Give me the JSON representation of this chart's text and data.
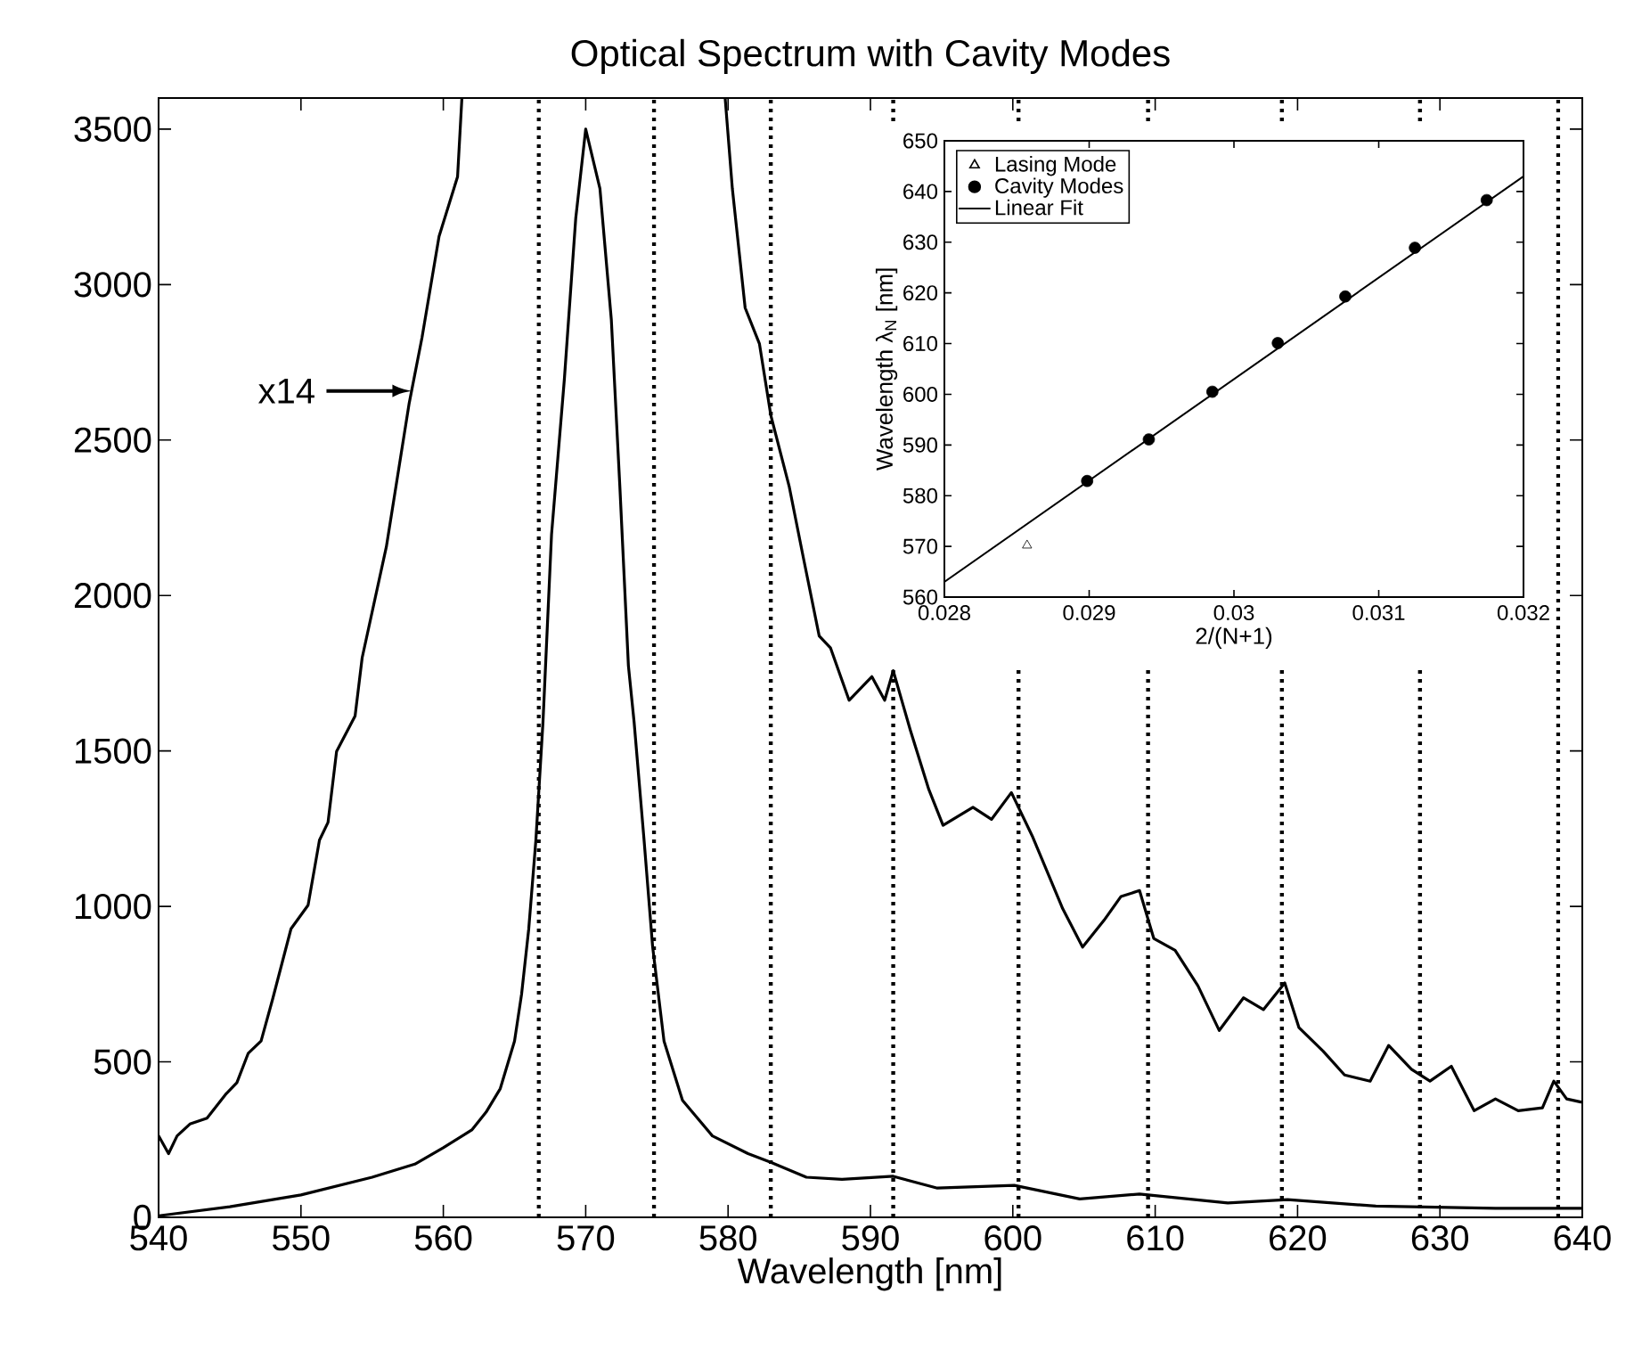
{
  "chart_data": [
    {
      "type": "line",
      "title": "Optical Spectrum with Cavity Modes",
      "xlabel": "Wavelength [nm]",
      "xlim": [
        540,
        640
      ],
      "ylim": [
        0,
        3600
      ],
      "xticks": [
        540,
        550,
        560,
        570,
        580,
        590,
        600,
        610,
        620,
        630,
        640
      ],
      "yticks": [
        0,
        500,
        1000,
        1500,
        2000,
        2500,
        3000,
        3500
      ],
      "series": [
        {
          "color": "#000000",
          "x": [
            540,
            545,
            550,
            555,
            558,
            560,
            562,
            563,
            564,
            565,
            565.5,
            566,
            566.5,
            567,
            567.6,
            568.5,
            569.3,
            570,
            571,
            571.8,
            572.4,
            573,
            573.4,
            574.1,
            574.7,
            575.5,
            576.8,
            578.9,
            581.4,
            583,
            585.5,
            588,
            591.6,
            594.7,
            600.1,
            604.7,
            608.9,
            615.1,
            619.3,
            625.5,
            633.9,
            639.7,
            640
          ],
          "values": [
            5,
            34,
            72,
            129,
            171,
            224,
            281,
            338,
            414,
            567,
            719,
            928,
            1213,
            1593,
            2196,
            2695,
            3213,
            3500,
            3309,
            2887,
            2349,
            1774,
            1593,
            1213,
            871,
            567,
            376,
            262,
            205,
            177,
            129,
            122,
            132,
            94,
            103,
            59,
            75,
            46,
            57,
            36,
            29,
            29,
            29
          ]
        },
        {
          "color": "#000000",
          "x": [
            540,
            540.7,
            541.3,
            542.2,
            543.4,
            544.7,
            545.5,
            546.3,
            547.2,
            548,
            549.3,
            550.5,
            551.3,
            551.9,
            552.5,
            553.8,
            554.3,
            556,
            557.6,
            558.5,
            559.7,
            561,
            561.3,
            570,
            579.8,
            580.3,
            581.2,
            582.2,
            583,
            584.3,
            585.3,
            586.4,
            587.2,
            588.5,
            590.1,
            591,
            591.6,
            592.8,
            594.1,
            595.1,
            597.2,
            598.5,
            599.9,
            601.4,
            603.5,
            604.9,
            606.4,
            607.6,
            608.9,
            609.9,
            611.4,
            613,
            614.5,
            616.2,
            617.6,
            619.1,
            620.1,
            621.8,
            623.3,
            625.1,
            626.4,
            628,
            629.3,
            630.8,
            632.4,
            633.9,
            635.5,
            637.2,
            638,
            638.9,
            639.9
          ],
          "values": [
            262,
            205,
            262,
            300,
            319,
            395,
            433,
            528,
            567,
            700,
            928,
            1004,
            1213,
            1270,
            1498,
            1612,
            1800,
            2157,
            2618,
            2829,
            3155,
            3347,
            3597,
            null,
            3597,
            3309,
            2925,
            2810,
            2580,
            2349,
            2119,
            1870,
            1831,
            1663,
            1739,
            1663,
            1758,
            1567,
            1376,
            1261,
            1319,
            1280,
            1366,
            1223,
            993,
            869,
            955,
            1032,
            1051,
            897,
            859,
            745,
            601,
            706,
            668,
            754,
            610,
            534,
            458,
            438,
            553,
            476,
            438,
            486,
            343,
            381,
            343,
            352,
            438,
            381,
            371
          ]
        }
      ],
      "ref_lines": [
        {
          "axis": "x",
          "value": 566.7,
          "line_style": "dotted",
          "color": "#000000"
        },
        {
          "axis": "x",
          "value": 574.8,
          "line_style": "dotted",
          "color": "#000000"
        },
        {
          "axis": "x",
          "value": 583,
          "line_style": "dotted",
          "color": "#000000"
        },
        {
          "axis": "x",
          "value": 591.6,
          "line_style": "dotted",
          "color": "#000000"
        },
        {
          "axis": "x",
          "value": 600.4,
          "line_style": "dotted",
          "color": "#000000"
        },
        {
          "axis": "x",
          "value": 609.5,
          "line_style": "dotted",
          "color": "#000000"
        },
        {
          "axis": "x",
          "value": 618.9,
          "line_style": "dotted",
          "color": "#000000"
        },
        {
          "axis": "x",
          "value": 628.6,
          "line_style": "dotted",
          "color": "#000000"
        },
        {
          "axis": "x",
          "value": 638.3,
          "line_style": "dotted",
          "color": "#000000"
        }
      ],
      "annotations": [
        {
          "text": "x14",
          "x": 557.8,
          "y": 2658
        }
      ],
      "grid": false,
      "legend": false
    },
    {
      "type": "scatter",
      "xlabel": "2/(N+1)",
      "ylabel": "Wavelength λ$_{N}$ [nm]",
      "xlim": [
        0.028,
        0.032
      ],
      "ylim": [
        560,
        650
      ],
      "xticks": [
        0.028,
        0.029,
        0.03,
        0.031,
        0.032
      ],
      "yticks": [
        560,
        570,
        580,
        590,
        600,
        610,
        620,
        630,
        640,
        650
      ],
      "series": [
        {
          "name": "Lasing Mode",
          "type": "scatter",
          "marker": "triangle",
          "color": "#000000",
          "x": [
            0.028571
          ],
          "values": [
            570.2
          ]
        },
        {
          "name": "Cavity Modes",
          "type": "scatter",
          "marker": "circle",
          "color": "#000000",
          "x": [
            0.028986,
            0.029412,
            0.029851,
            0.030303,
            0.030769,
            0.03125,
            0.031746
          ],
          "values": [
            582.9,
            591.1,
            600.5,
            610.1,
            619.3,
            628.9,
            638.3
          ]
        },
        {
          "name": "Linear Fit",
          "type": "line",
          "color": "#000000",
          "x": [
            0.028,
            0.032
          ],
          "values": [
            563,
            643
          ]
        }
      ],
      "grid": false,
      "legend": "top left"
    }
  ]
}
